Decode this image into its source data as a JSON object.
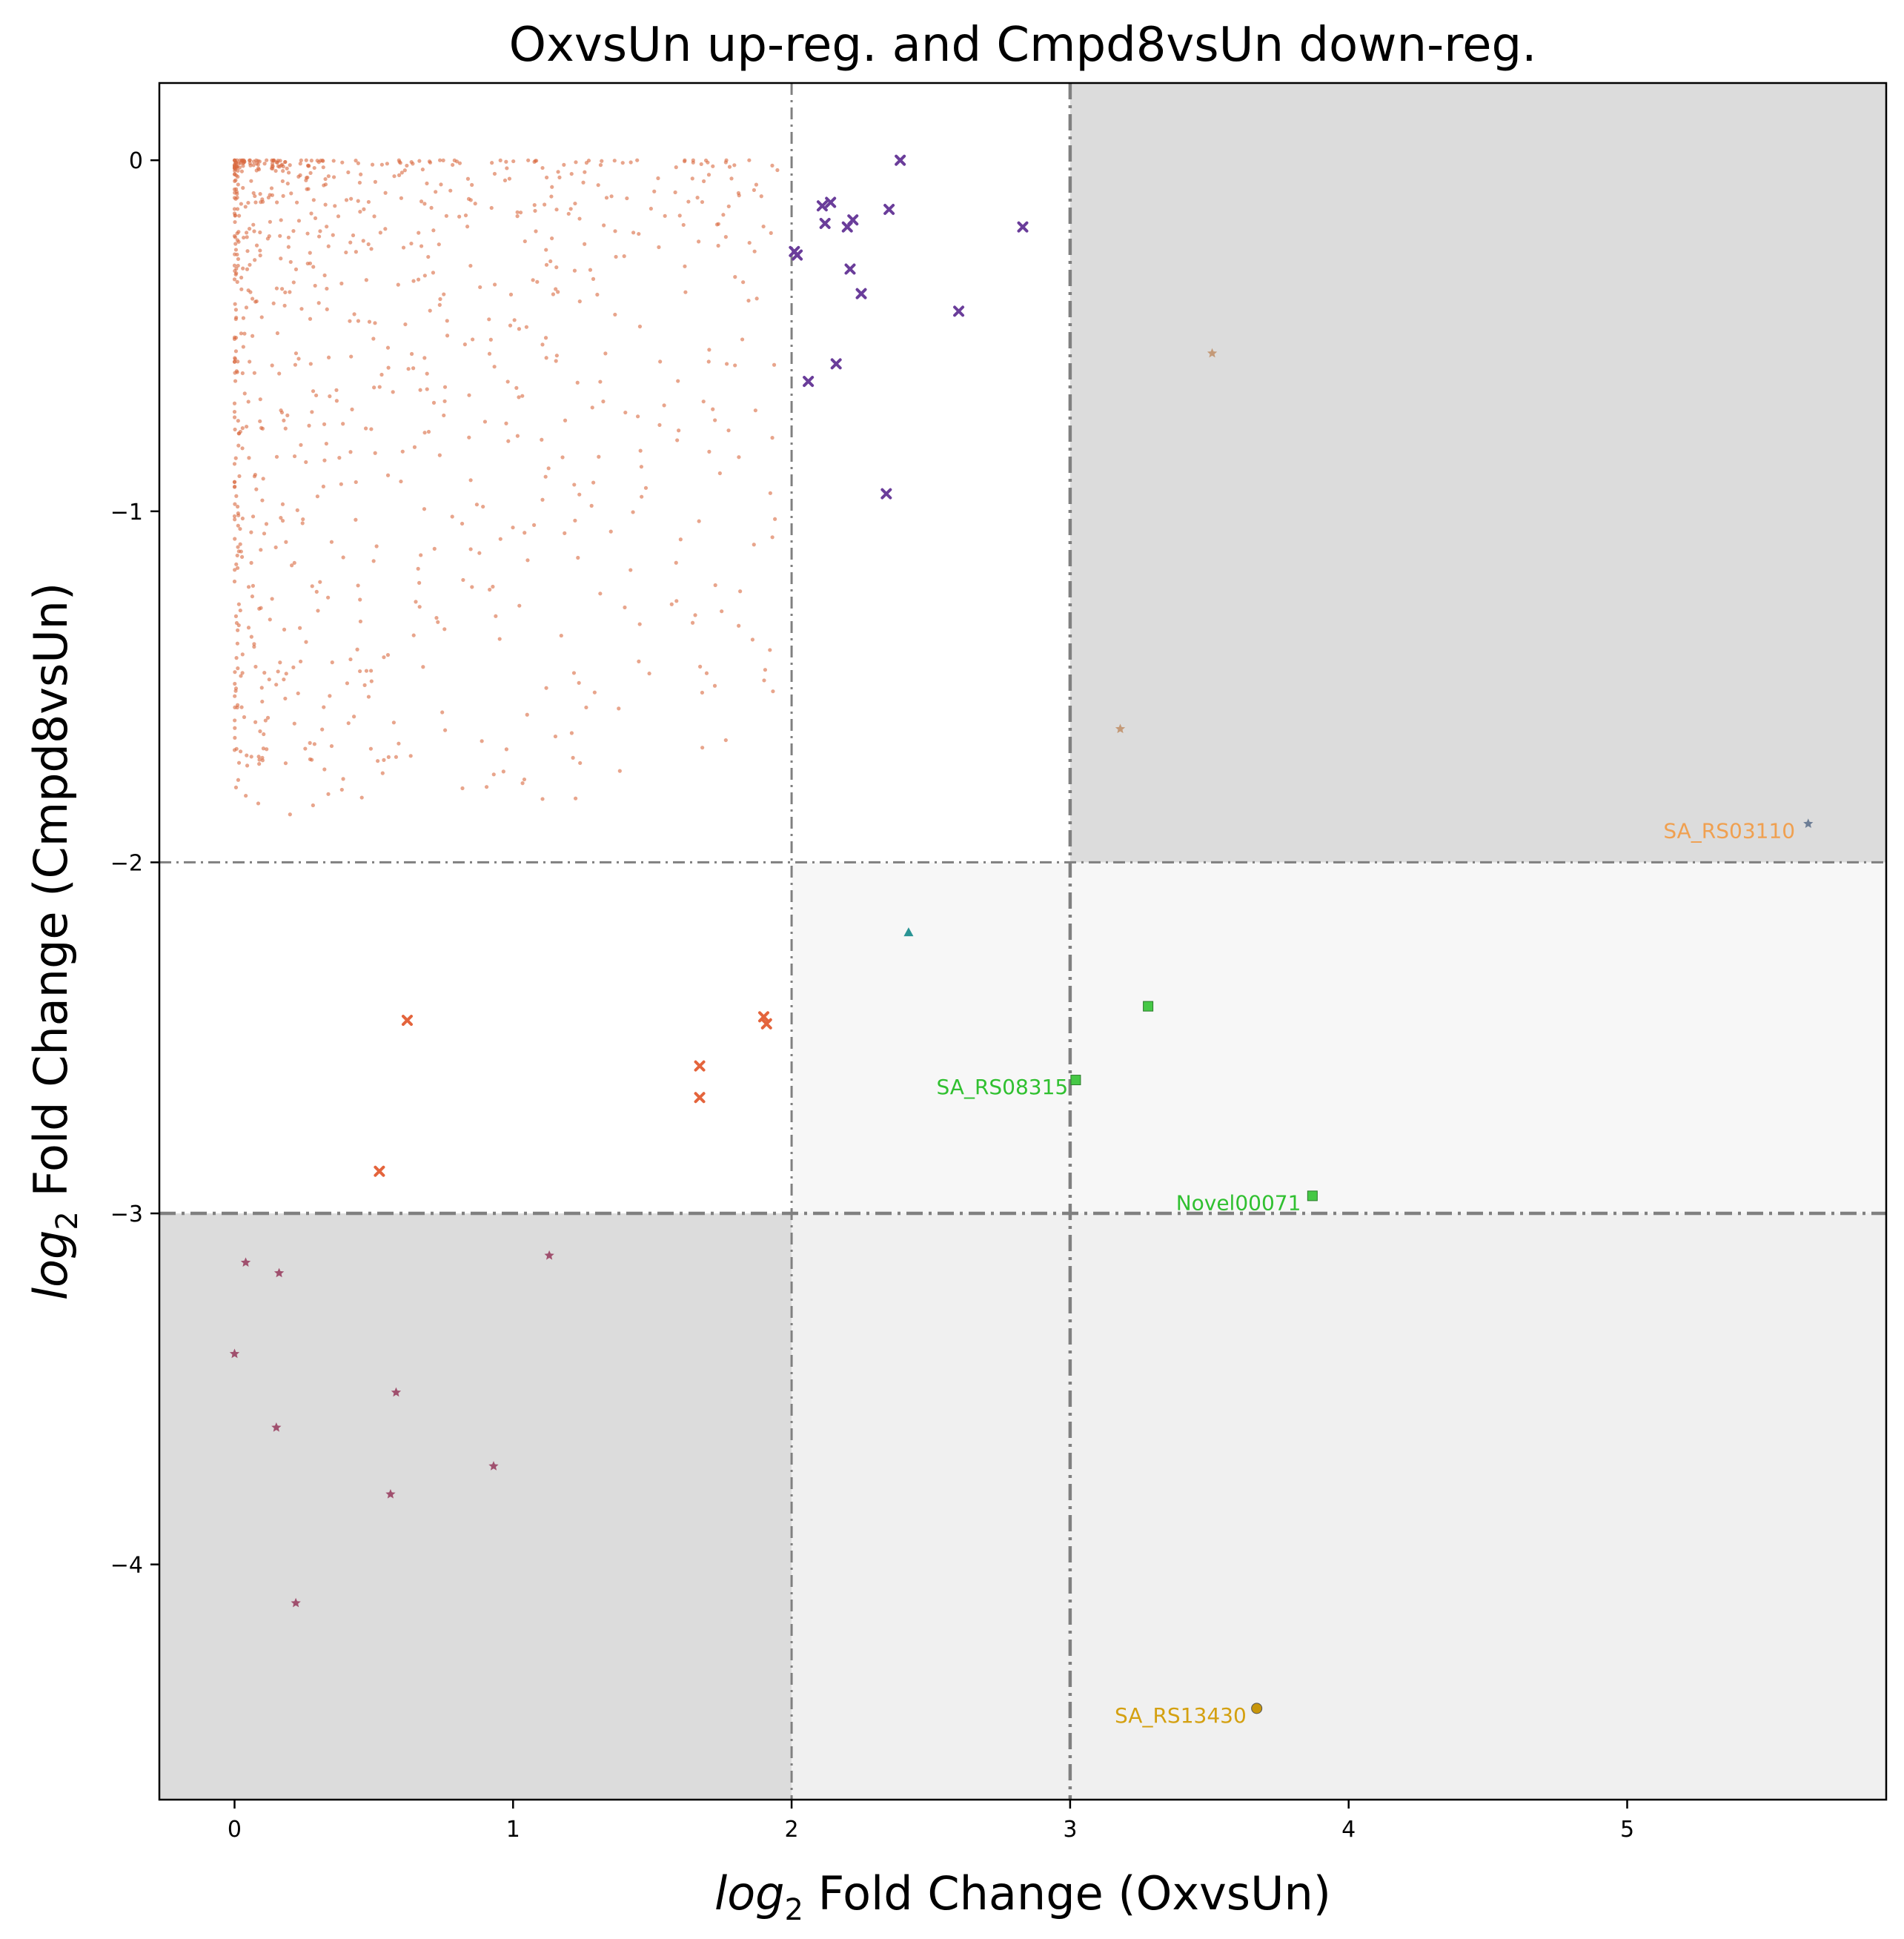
{
  "chart_data": {
    "type": "scatter",
    "title": "OxvsUn up-reg. and Cmpd8vsUn down-reg.",
    "xlabel": {
      "italic": "log",
      "sub": "2",
      "rest": " Fold Change (OxvsUn)"
    },
    "ylabel": {
      "italic": "log",
      "sub": "2",
      "rest": " Fold Change (Cmpd8vsUn)"
    },
    "xlim": [
      -0.27,
      5.93
    ],
    "ylim": [
      -4.67,
      0.22
    ],
    "xticks": [
      {
        "v": 0,
        "label": "0"
      },
      {
        "v": 1,
        "label": "1"
      },
      {
        "v": 2,
        "label": "2"
      },
      {
        "v": 3,
        "label": "3"
      },
      {
        "v": 4,
        "label": "4"
      },
      {
        "v": 5,
        "label": "5"
      }
    ],
    "yticks": [
      {
        "v": 0,
        "label": "0"
      },
      {
        "v": -1,
        "label": "−1"
      },
      {
        "v": -2,
        "label": "−2"
      },
      {
        "v": -3,
        "label": "−3"
      },
      {
        "v": -4,
        "label": "−4"
      }
    ],
    "grid": false,
    "regions": [
      {
        "x": [
          3,
          5.93
        ],
        "y": [
          -2,
          0.22
        ],
        "color": "#dcdcdc"
      },
      {
        "x": [
          -0.27,
          2
        ],
        "y": [
          -4.67,
          -3
        ],
        "color": "#dcdcdc"
      },
      {
        "x": [
          3,
          5.93
        ],
        "y": [
          -3,
          -2
        ],
        "color": "#f7f7f7"
      },
      {
        "x": [
          2,
          5.93
        ],
        "y": [
          -4.67,
          -3
        ],
        "color": "#f0f0f0"
      },
      {
        "x": [
          2,
          3
        ],
        "y": [
          -3,
          -2
        ],
        "color": "#f7f7f7"
      }
    ],
    "threshold_lines": [
      {
        "orient": "v",
        "value": 2,
        "bold": false
      },
      {
        "orient": "v",
        "value": 3,
        "bold": true
      },
      {
        "orient": "h",
        "value": -2,
        "bold": false
      },
      {
        "orient": "h",
        "value": -3,
        "bold": true
      }
    ],
    "series": [
      {
        "marker": "cross",
        "color": "#6a3d9a",
        "points": [
          [
            2.01,
            -0.26
          ],
          [
            2.02,
            -0.27
          ],
          [
            2.06,
            -0.63
          ],
          [
            2.11,
            -0.13
          ],
          [
            2.12,
            -0.18
          ],
          [
            2.14,
            -0.12
          ],
          [
            2.16,
            -0.58
          ],
          [
            2.2,
            -0.19
          ],
          [
            2.21,
            -0.31
          ],
          [
            2.22,
            -0.17
          ],
          [
            2.25,
            -0.38
          ],
          [
            2.34,
            -0.95
          ],
          [
            2.35,
            -0.14
          ],
          [
            2.39,
            0
          ],
          [
            2.6,
            -0.43
          ],
          [
            2.83,
            -0.19
          ]
        ]
      },
      {
        "marker": "cross",
        "color": "#e4643c",
        "points": [
          [
            0.52,
            -2.88
          ],
          [
            0.62,
            -2.45
          ],
          [
            1.67,
            -2.58
          ],
          [
            1.67,
            -2.67
          ],
          [
            1.9,
            -2.44
          ],
          [
            1.91,
            -2.46
          ]
        ]
      },
      {
        "marker": "star",
        "color": "#a0506e",
        "points": [
          [
            0,
            -3.4
          ],
          [
            0.04,
            -3.14
          ],
          [
            0.15,
            -3.61
          ],
          [
            0.16,
            -3.17
          ],
          [
            0.22,
            -4.11
          ],
          [
            0.56,
            -3.8
          ],
          [
            0.58,
            -3.51
          ],
          [
            0.93,
            -3.72
          ],
          [
            1.13,
            -3.12
          ]
        ]
      },
      {
        "marker": "star",
        "color": "#c49a78",
        "points": [
          [
            3.18,
            -1.62
          ],
          [
            3.51,
            -0.55
          ]
        ]
      },
      {
        "marker": "star",
        "color": "#6d7e96",
        "points": [
          [
            5.65,
            -1.89
          ]
        ]
      },
      {
        "marker": "triangle",
        "color": "#2a9494",
        "points": [
          [
            2.42,
            -2.2
          ]
        ]
      },
      {
        "marker": "square",
        "color": "#46c846",
        "points": [
          [
            3.02,
            -2.62
          ],
          [
            3.28,
            -2.41
          ],
          [
            3.87,
            -2.95
          ]
        ]
      },
      {
        "marker": "circle",
        "color": "#c8960a",
        "points": [
          [
            3.67,
            -4.41
          ]
        ]
      }
    ],
    "background_cloud": {
      "color": "#d8693f",
      "count": 900
    },
    "annotations": [
      {
        "text": "SA_RS03110",
        "x": 5.13,
        "y": -1.93,
        "color": "#f0a050"
      },
      {
        "text": "SA_RS08315",
        "x": 2.52,
        "y": -2.66,
        "color": "#30c030"
      },
      {
        "text": "Novel00071",
        "x": 3.38,
        "y": -2.99,
        "color": "#30c030"
      },
      {
        "text": "SA_RS13430",
        "x": 3.16,
        "y": -4.45,
        "color": "#d4a010"
      }
    ]
  }
}
